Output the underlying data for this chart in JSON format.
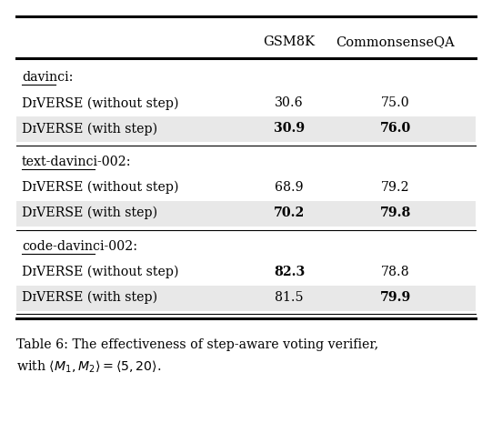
{
  "col_headers": [
    "",
    "GSM8K",
    "CommonsenseQA"
  ],
  "sections": [
    {
      "section_label": "davinci:",
      "rows": [
        {
          "label": "DɪVERSE (without step)",
          "values": [
            "30.6",
            "75.0"
          ],
          "bold_values": [
            false,
            false
          ],
          "highlight": false
        },
        {
          "label": "DɪVERSE (with step)",
          "values": [
            "30.9",
            "76.0"
          ],
          "bold_values": [
            true,
            true
          ],
          "highlight": true
        }
      ]
    },
    {
      "section_label": "text-davinci-002:",
      "rows": [
        {
          "label": "DɪVERSE (without step)",
          "values": [
            "68.9",
            "79.2"
          ],
          "bold_values": [
            false,
            false
          ],
          "highlight": false
        },
        {
          "label": "DɪVERSE (with step)",
          "values": [
            "70.2",
            "79.8"
          ],
          "bold_values": [
            true,
            true
          ],
          "highlight": true
        }
      ]
    },
    {
      "section_label": "code-davinci-002:",
      "rows": [
        {
          "label": "DɪVERSE (without step)",
          "values": [
            "82.3",
            "78.8"
          ],
          "bold_values": [
            true,
            false
          ],
          "highlight": false
        },
        {
          "label": "DɪVERSE (with step)",
          "values": [
            "81.5",
            "79.9"
          ],
          "bold_values": [
            false,
            true
          ],
          "highlight": true
        }
      ]
    }
  ],
  "highlight_color": "#e8e8e8",
  "bg_color": "#ffffff",
  "figsize": [
    5.41,
    4.65
  ],
  "dpi": 100
}
